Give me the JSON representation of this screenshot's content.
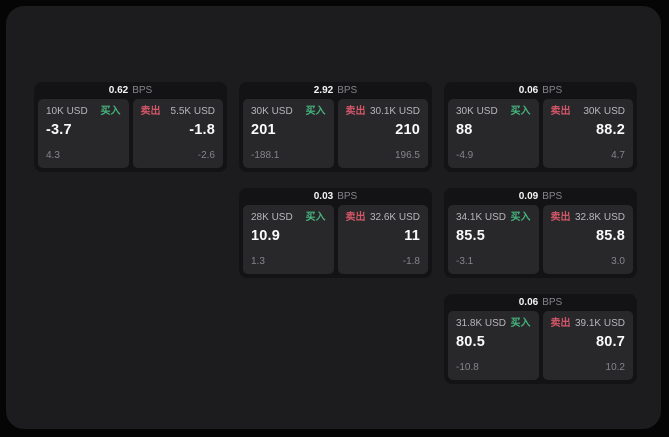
{
  "labels": {
    "bps_unit": "BPS",
    "buy": "买入",
    "sell": "卖出"
  },
  "colors": {
    "buy_green": "#46b47d",
    "sell_red": "#d25667",
    "page_bg": "#050505",
    "panel_bg": "#1c1c1e",
    "card_bg": "#131315",
    "tile_bg": "#28282b"
  },
  "cards": [
    {
      "row": 1,
      "col": 1,
      "bps": "0.62",
      "buy": {
        "amount": "10K USD",
        "price": "-3.7",
        "change": "4.3"
      },
      "sell": {
        "amount": "5.5K USD",
        "price": "-1.8",
        "change": "-2.6"
      }
    },
    {
      "row": 1,
      "col": 2,
      "bps": "2.92",
      "buy": {
        "amount": "30K USD",
        "price": "201",
        "change": "-188.1"
      },
      "sell": {
        "amount": "30.1K USD",
        "price": "210",
        "change": "196.5"
      }
    },
    {
      "row": 1,
      "col": 3,
      "bps": "0.06",
      "buy": {
        "amount": "30K USD",
        "price": "88",
        "change": "-4.9"
      },
      "sell": {
        "amount": "30K USD",
        "price": "88.2",
        "change": "4.7"
      }
    },
    {
      "row": 2,
      "col": 2,
      "bps": "0.03",
      "buy": {
        "amount": "28K USD",
        "price": "10.9",
        "change": "1.3"
      },
      "sell": {
        "amount": "32.6K USD",
        "price": "11",
        "change": "-1.8"
      }
    },
    {
      "row": 2,
      "col": 3,
      "bps": "0.09",
      "buy": {
        "amount": "34.1K USD",
        "price": "85.5",
        "change": "-3.1"
      },
      "sell": {
        "amount": "32.8K USD",
        "price": "85.8",
        "change": "3.0"
      }
    },
    {
      "row": 3,
      "col": 3,
      "bps": "0.06",
      "buy": {
        "amount": "31.8K USD",
        "price": "80.5",
        "change": "-10.8"
      },
      "sell": {
        "amount": "39.1K USD",
        "price": "80.7",
        "change": "10.2"
      }
    }
  ]
}
